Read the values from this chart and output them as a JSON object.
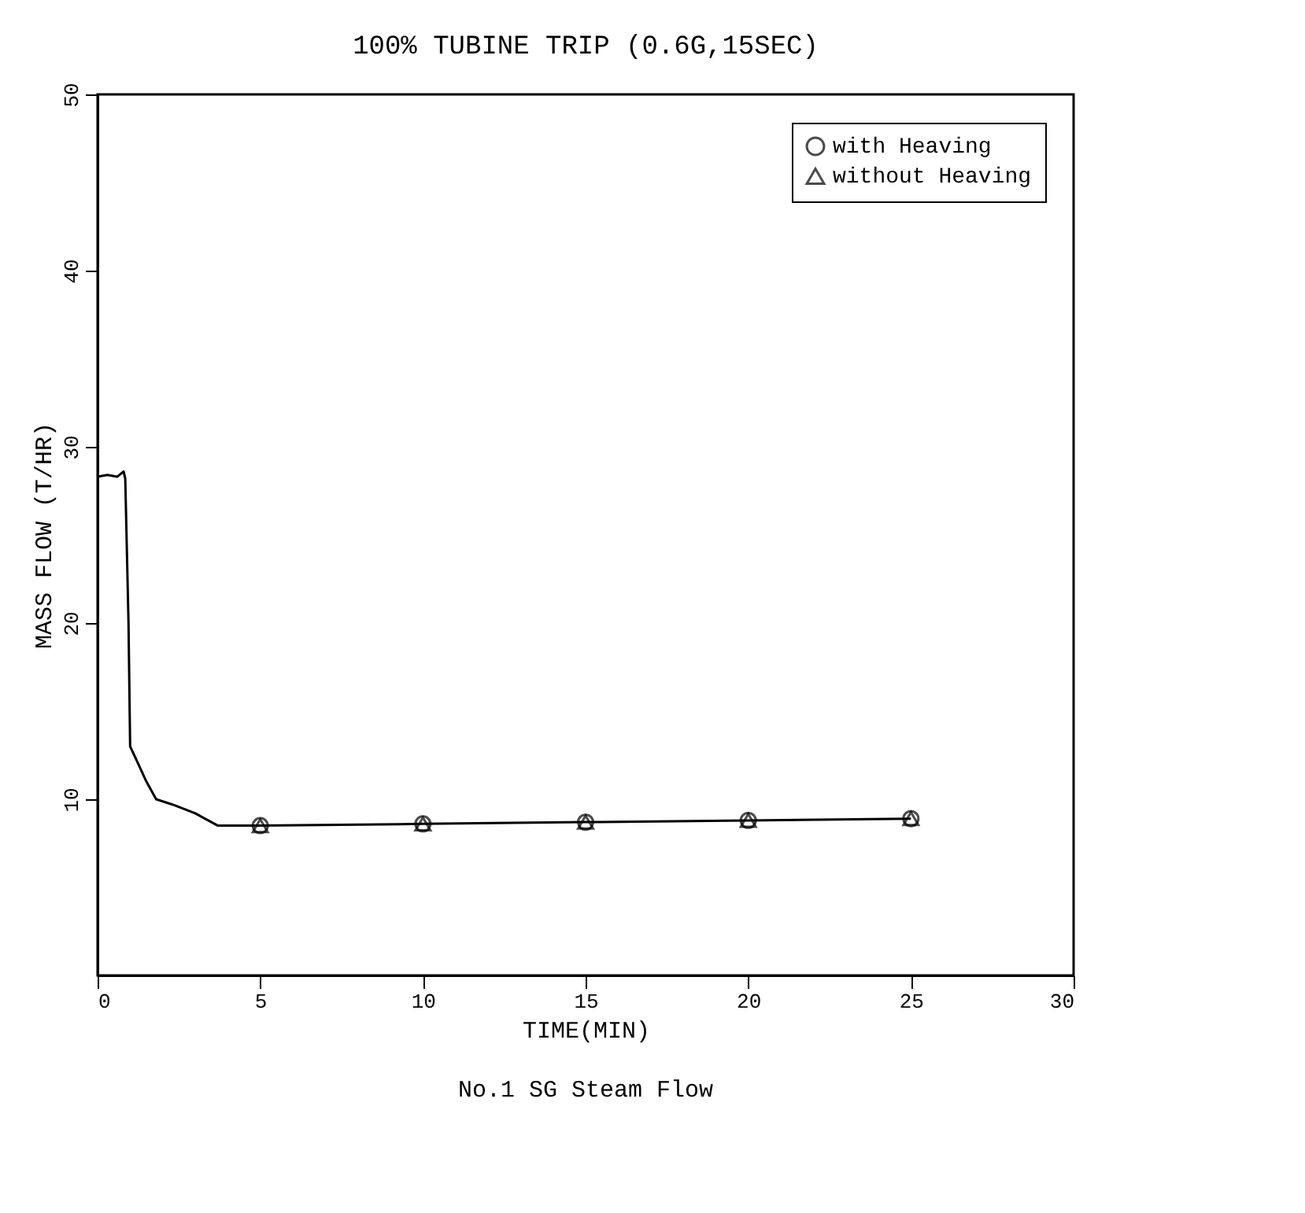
{
  "chart_data": {
    "type": "line",
    "title": "100% TUBINE TRIP (0.6G,15SEC)",
    "xlabel": "TIME(MIN)",
    "ylabel": "MASS FLOW (T/HR)",
    "annotations": [
      "No.1 SG Steam Flow"
    ],
    "series": [
      {
        "color": "#000000",
        "marker": "none",
        "x": [
          0,
          0.3,
          0.6,
          0.8,
          0.85,
          0.95,
          1.0,
          1.2,
          1.5,
          1.8,
          2.3,
          3.0,
          3.7,
          5,
          10,
          15,
          20,
          25
        ],
        "values": [
          28.3,
          28.4,
          28.3,
          28.6,
          28.2,
          20,
          13,
          12.2,
          11,
          10,
          9.7,
          9.2,
          8.5,
          8.5,
          8.6,
          8.7,
          8.8,
          8.9
        ]
      },
      {
        "name": "with Heaving",
        "type": "scatter",
        "marker": "circle",
        "color": "#000000",
        "x": [
          5,
          10,
          15,
          20,
          25
        ],
        "values": [
          8.5,
          8.6,
          8.7,
          8.8,
          8.9
        ]
      },
      {
        "name": "without Heaving",
        "type": "scatter",
        "marker": "triangle",
        "color": "#000000",
        "x": [
          5,
          10,
          15,
          20,
          25
        ],
        "values": [
          8.5,
          8.6,
          8.7,
          8.8,
          8.9
        ]
      }
    ],
    "xlim": [
      0,
      30
    ],
    "xticks": [
      0,
      5,
      10,
      15,
      20,
      25,
      30
    ],
    "ylim": [
      0,
      50
    ],
    "yticks": [
      10,
      20,
      30,
      40,
      50
    ],
    "grid": false,
    "legend": "top right"
  }
}
